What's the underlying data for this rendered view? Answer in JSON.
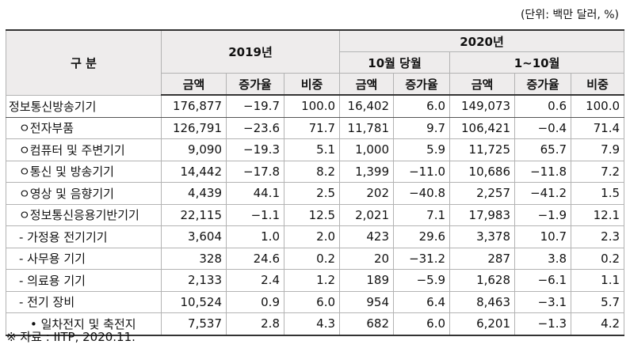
{
  "unit_note": "(단위: 백만 달러, %)",
  "header": {
    "gubun": "구  분",
    "year2019": "2019년",
    "year2020": "2020년",
    "oct_month": "10월 당월",
    "jan_oct": "1~10월",
    "amount": "금액",
    "growth": "증가율",
    "share": "비중"
  },
  "rows": [
    {
      "label": "정보통신방송기기",
      "v": [
        "176,877",
        "−19.7",
        "100.0",
        "16,402",
        "6.0",
        "149,073",
        "0.6",
        "100.0"
      ]
    },
    {
      "label": "ㅇ전자부품",
      "v": [
        "126,791",
        "−23.6",
        "71.7",
        "11,781",
        "9.7",
        "106,421",
        "−0.4",
        "71.4"
      ]
    },
    {
      "label": "ㅇ컴퓨터 및 주변기기",
      "v": [
        "9,090",
        "−19.3",
        "5.1",
        "1,000",
        "5.9",
        "11,725",
        "65.7",
        "7.9"
      ]
    },
    {
      "label": "ㅇ통신 및 방송기기",
      "v": [
        "14,442",
        "−17.8",
        "8.2",
        "1,399",
        "−11.0",
        "10,686",
        "−11.8",
        "7.2"
      ]
    },
    {
      "label": "ㅇ영상 및 음향기기",
      "v": [
        "4,439",
        "44.1",
        "2.5",
        "202",
        "−40.8",
        "2,257",
        "−41.2",
        "1.5"
      ]
    },
    {
      "label": "ㅇ정보통신응용기반기기",
      "v": [
        "22,115",
        "−1.1",
        "12.5",
        "2,021",
        "7.1",
        "17,983",
        "−1.9",
        "12.1"
      ]
    },
    {
      "label": "- 가정용 전기기기",
      "v": [
        "3,604",
        "1.0",
        "2.0",
        "423",
        "29.6",
        "3,378",
        "10.7",
        "2.3"
      ]
    },
    {
      "label": "- 사무용 기기",
      "v": [
        "328",
        "24.6",
        "0.2",
        "20",
        "−31.2",
        "287",
        "3.8",
        "0.2"
      ]
    },
    {
      "label": "- 의료용 기기",
      "v": [
        "2,133",
        "2.4",
        "1.2",
        "189",
        "−5.9",
        "1,628",
        "−6.1",
        "1.1"
      ]
    },
    {
      "label": "- 전기 장비",
      "v": [
        "10,524",
        "0.9",
        "6.0",
        "954",
        "6.4",
        "8,463",
        "−3.1",
        "5.7"
      ]
    },
    {
      "label": "• 일차전지 및 축전지",
      "v": [
        "7,537",
        "2.8",
        "4.3",
        "682",
        "6.0",
        "6,201",
        "−1.3",
        "4.2"
      ]
    }
  ],
  "source": "※ 자료 : IITP, 2020.11."
}
